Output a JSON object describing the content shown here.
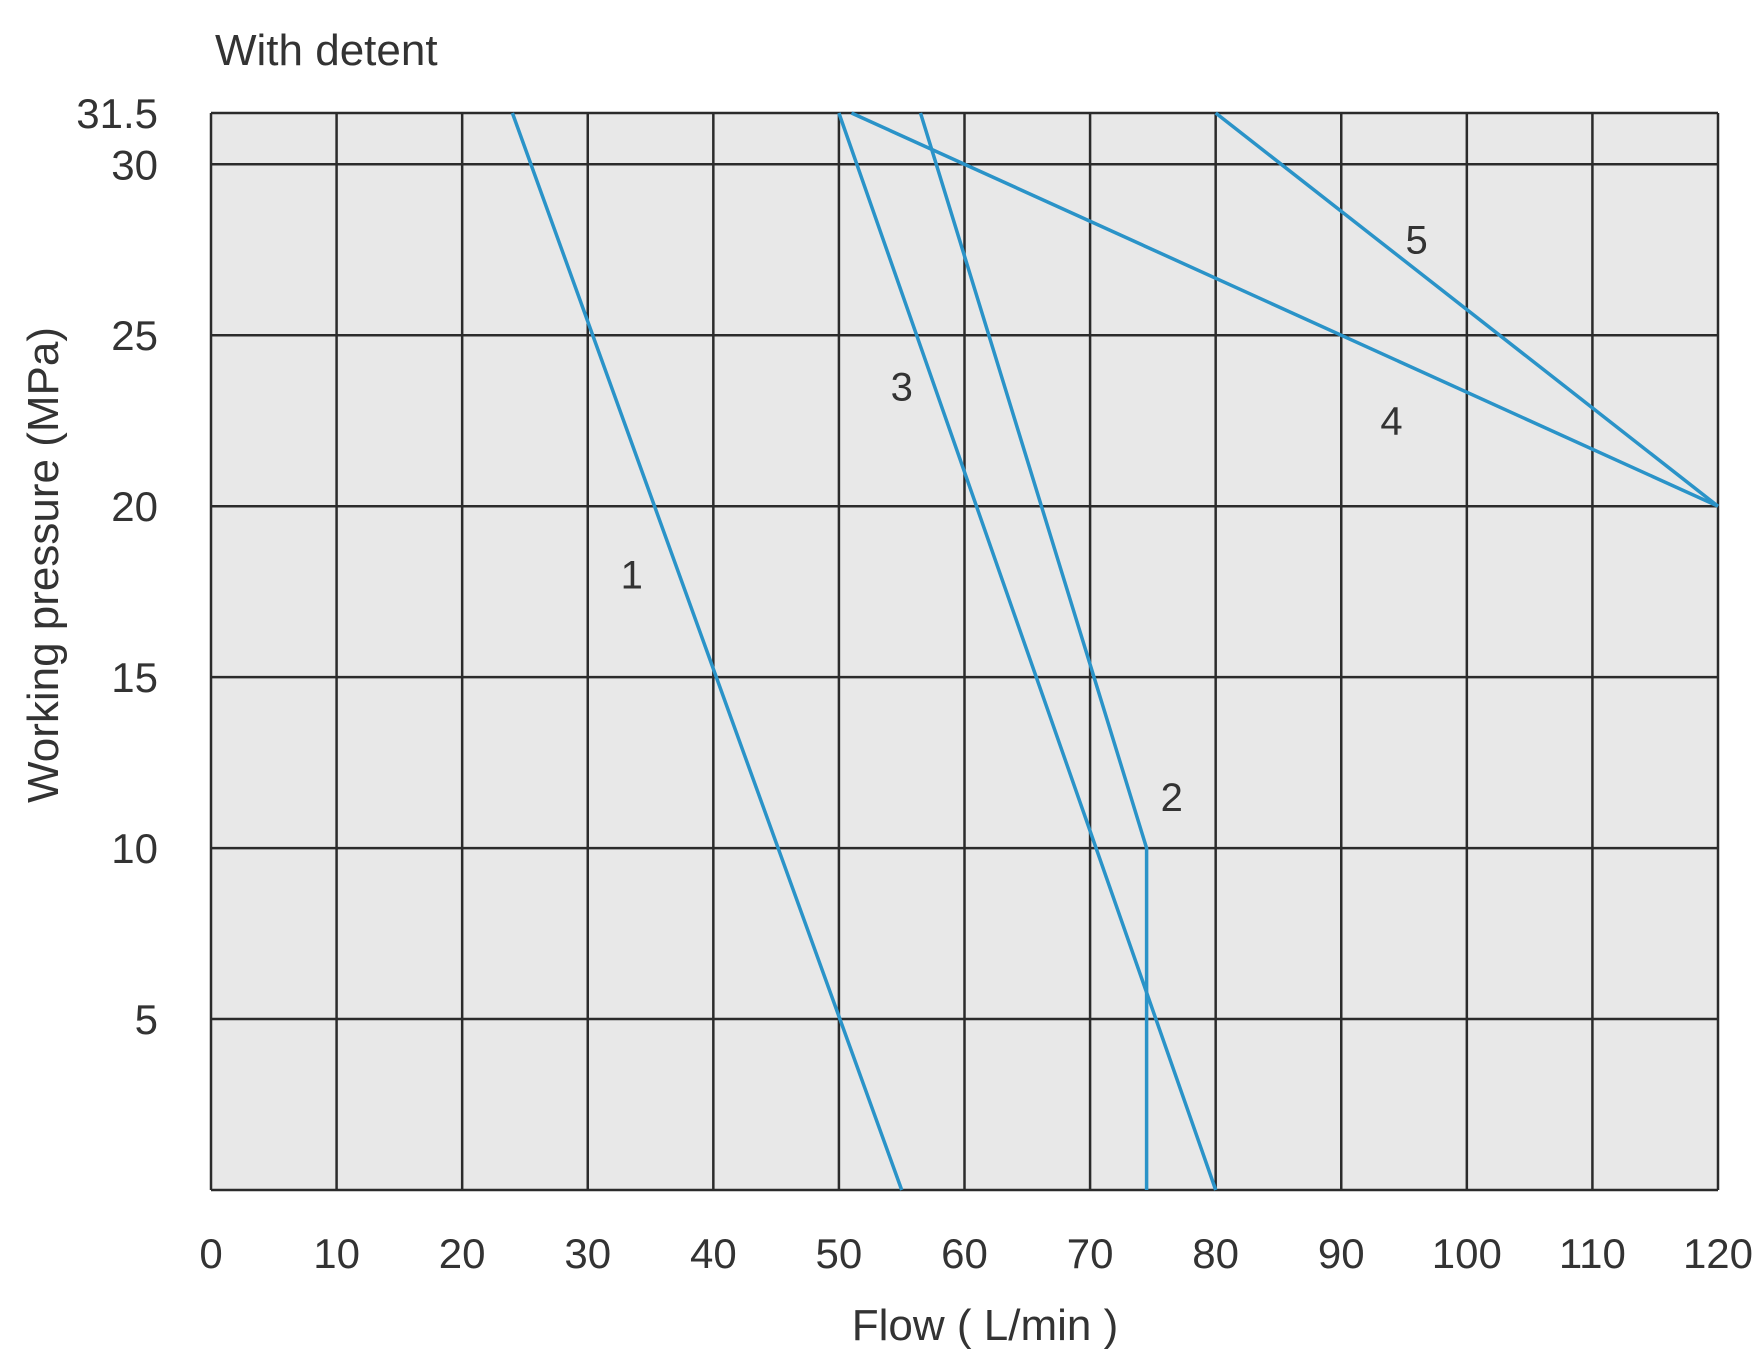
{
  "chart_data": {
    "type": "line",
    "title": "With detent",
    "xlabel": "Flow ( L/min )",
    "ylabel": "Working  pressure (MPa)",
    "xlim": [
      0,
      120
    ],
    "ylim": [
      0,
      31.5
    ],
    "x_ticks": [
      "0",
      "10",
      "20",
      "30",
      "40",
      "50",
      "60",
      "70",
      "80",
      "90",
      "100",
      "110",
      "120"
    ],
    "y_ticks": [
      {
        "value": 5,
        "label": "5"
      },
      {
        "value": 10,
        "label": "10"
      },
      {
        "value": 15,
        "label": "15"
      },
      {
        "value": 20,
        "label": "20"
      },
      {
        "value": 25,
        "label": "25"
      },
      {
        "value": 30,
        "label": "30"
      },
      {
        "value": 31.5,
        "label": "31.5"
      }
    ],
    "x_grid": [
      0,
      10,
      20,
      30,
      40,
      50,
      60,
      70,
      80,
      90,
      100,
      110,
      120
    ],
    "y_grid": [
      0,
      5,
      10,
      15,
      20,
      25,
      30,
      31.5
    ],
    "grid": true,
    "colors": {
      "line": "#2a93c8",
      "plot_background": "#e8e8e8",
      "grid": "#2b2b2b",
      "text": "#333333"
    },
    "series": [
      {
        "label": "1",
        "points": [
          [
            24,
            31.5
          ],
          [
            55,
            0
          ]
        ],
        "label_at": [
          33.5,
          18
        ]
      },
      {
        "label": "2",
        "points": [
          [
            56.5,
            31.5
          ],
          [
            74.5,
            10
          ],
          [
            74.5,
            0
          ]
        ],
        "label_at": [
          76.5,
          11.5
        ]
      },
      {
        "label": "3",
        "points": [
          [
            50,
            31.5
          ],
          [
            80,
            0
          ]
        ],
        "label_at": [
          55,
          23.5
        ]
      },
      {
        "label": "4",
        "points": [
          [
            51,
            31.5
          ],
          [
            120,
            20
          ]
        ],
        "label_at": [
          94,
          22.5
        ]
      },
      {
        "label": "5",
        "points": [
          [
            80,
            31.5
          ],
          [
            120,
            20
          ]
        ],
        "label_at": [
          96,
          27.8
        ]
      }
    ]
  }
}
